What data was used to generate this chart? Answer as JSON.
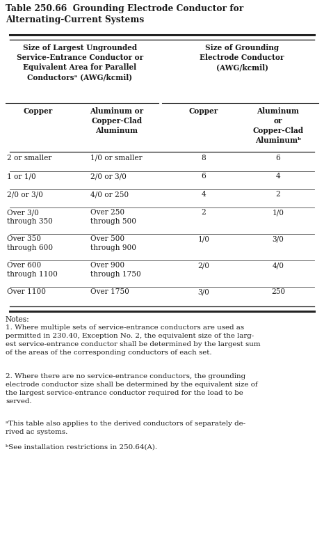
{
  "title_line1": "Table 250.66  Grounding Electrode Conductor for",
  "title_line2": "Alternating-Current Systems",
  "grp_hdr_left": "Size of Largest Ungrounded\nService-Entrance Conductor or\nEquivalent Area for Parallel\nConductorsᵃ (AWG/kcmil)",
  "grp_hdr_right": "Size of Grounding\nElectrode Conductor\n(AWG/kcmil)",
  "col_hdr": [
    "Copper",
    "Aluminum or\nCopper-Clad\nAluminum",
    "Copper",
    "Aluminum\nor\nCopper-Clad\nAluminumᵇ"
  ],
  "rows": [
    [
      "2 or smaller",
      "1/0 or smaller",
      "8",
      "6"
    ],
    [
      "1 or 1/0",
      "2/0 or 3/0",
      "6",
      "4"
    ],
    [
      "2/0 or 3/0",
      "4/0 or 250",
      "4",
      "2"
    ],
    [
      "Over 3/0\nthrough 350",
      "Over 250\nthrough 500",
      "2",
      "1/0"
    ],
    [
      "Over 350\nthrough 600",
      "Over 500\nthrough 900",
      "1/0",
      "3/0"
    ],
    [
      "Over 600\nthrough 1100",
      "Over 900\nthrough 1750",
      "2/0",
      "4/0"
    ],
    [
      "Over 1100",
      "Over 1750",
      "3/0",
      "250"
    ]
  ],
  "note0": "Notes:",
  "note1": "1. Where multiple sets of service-entrance conductors are used as\npermitted in 230.40, Exception No. 2, the equivalent size of the larg-\nest service-entrance conductor shall be determined by the largest sum\nof the areas of the corresponding conductors of each set.",
  "note2": "2. Where there are no service-entrance conductors, the grounding\nelectrode conductor size shall be determined by the equivalent size of\nthe largest service-entrance conductor required for the load to be\nserved.",
  "note3": "ᵃThis table also applies to the derived conductors of separately de-\nrived ac systems.",
  "note4": "ᵇSee installation restrictions in 250.64(A).",
  "bg": "#ffffff",
  "tc": "#1a1a1a",
  "fs_title": 8.8,
  "fs_body": 7.6
}
